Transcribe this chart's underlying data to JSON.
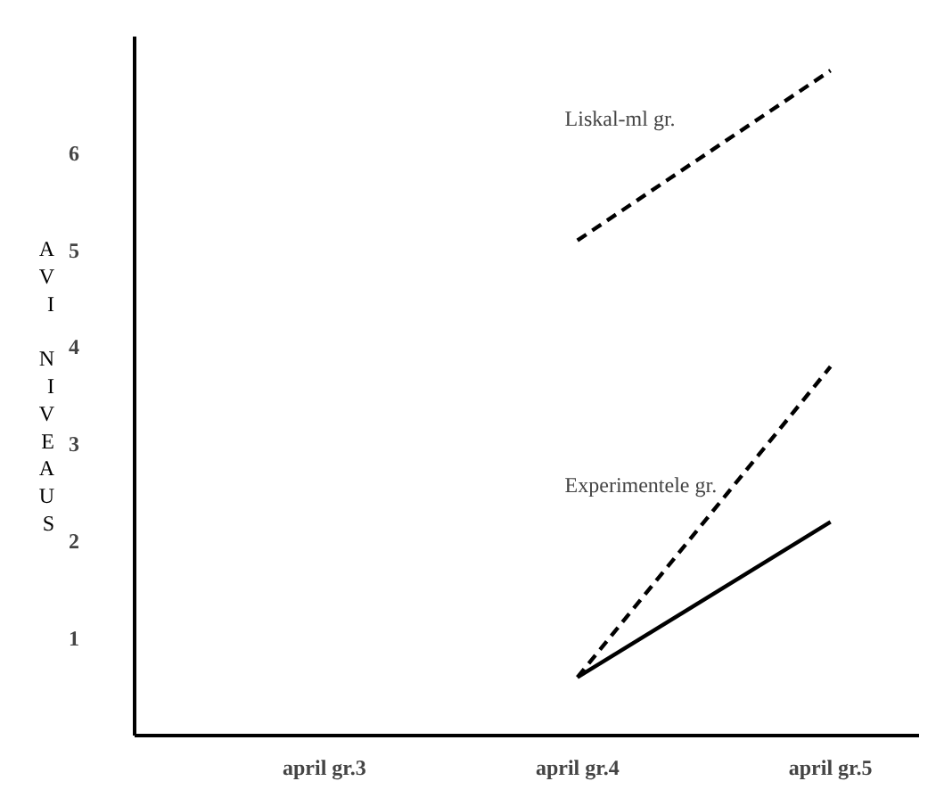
{
  "chart_data": {
    "type": "line",
    "ylabel": "AVI NIVEAUS",
    "categories": [
      "april gr.3",
      "april gr.4",
      "april gr.5"
    ],
    "ylim": [
      0,
      7.2
    ],
    "yticks": [
      1,
      2,
      3,
      4,
      5,
      6
    ],
    "series": [
      {
        "name": "Liskal-ml gr.",
        "color": "#000000",
        "line_style": "dashed",
        "values": [
          null,
          5.1,
          6.85
        ]
      },
      {
        "name": "Experimentele gr.",
        "color": "#000000",
        "line_style": "dashed",
        "values": [
          null,
          0.6,
          3.8
        ]
      },
      {
        "color": "#000000",
        "line_style": "solid",
        "values": [
          null,
          0.6,
          2.2
        ]
      }
    ],
    "marker": "none",
    "grid": false
  }
}
